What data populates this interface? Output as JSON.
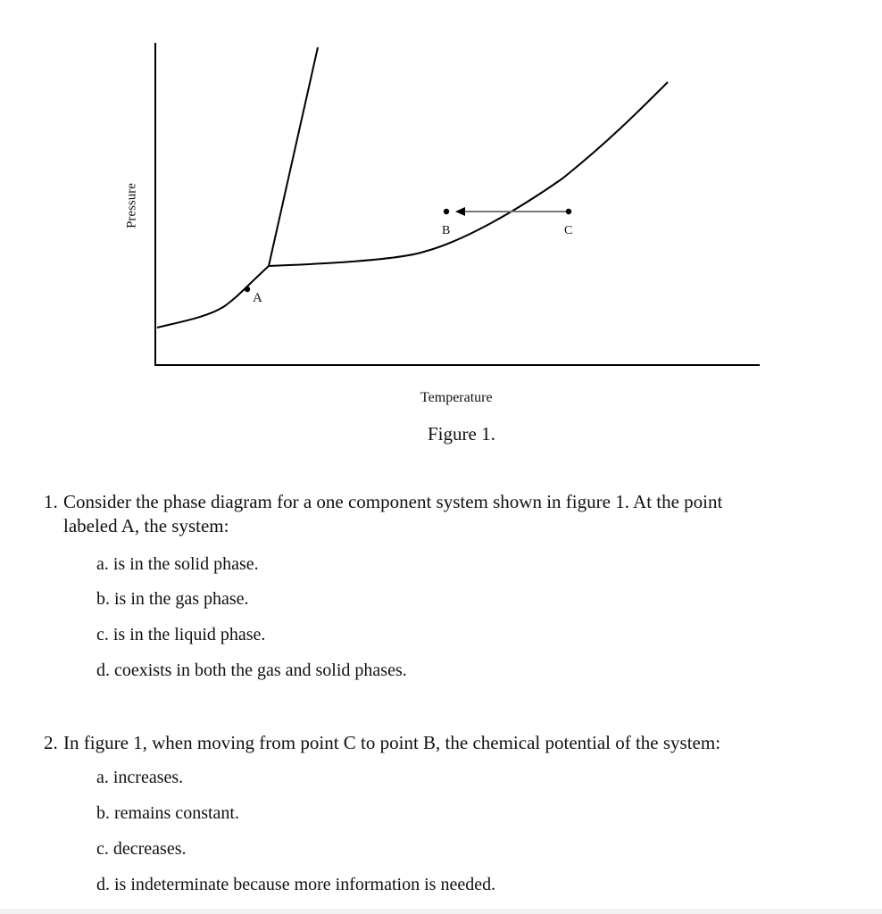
{
  "figure": {
    "y_axis_label": "Pressure",
    "x_axis_label": "Temperature",
    "caption": "Figure 1.",
    "points": {
      "A": "A",
      "B": "B",
      "C": "C"
    }
  },
  "questions": [
    {
      "number": "1.",
      "text_line1": "Consider the phase diagram for a one component system shown in figure 1.  At the point",
      "text_line2": "labeled A, the system:",
      "options": [
        "a.  is in the solid phase.",
        "b.  is in the gas phase.",
        "c.  is in the liquid phase.",
        "d.  coexists in both the gas and solid phases."
      ]
    },
    {
      "number": "2.",
      "text_line1": "In figure 1, when moving from point C to point B, the chemical potential of the system:",
      "options": [
        "a.  increases.",
        "b.  remains constant.",
        "c.  decreases.",
        "d.  is indeterminate because more information is needed."
      ]
    }
  ]
}
